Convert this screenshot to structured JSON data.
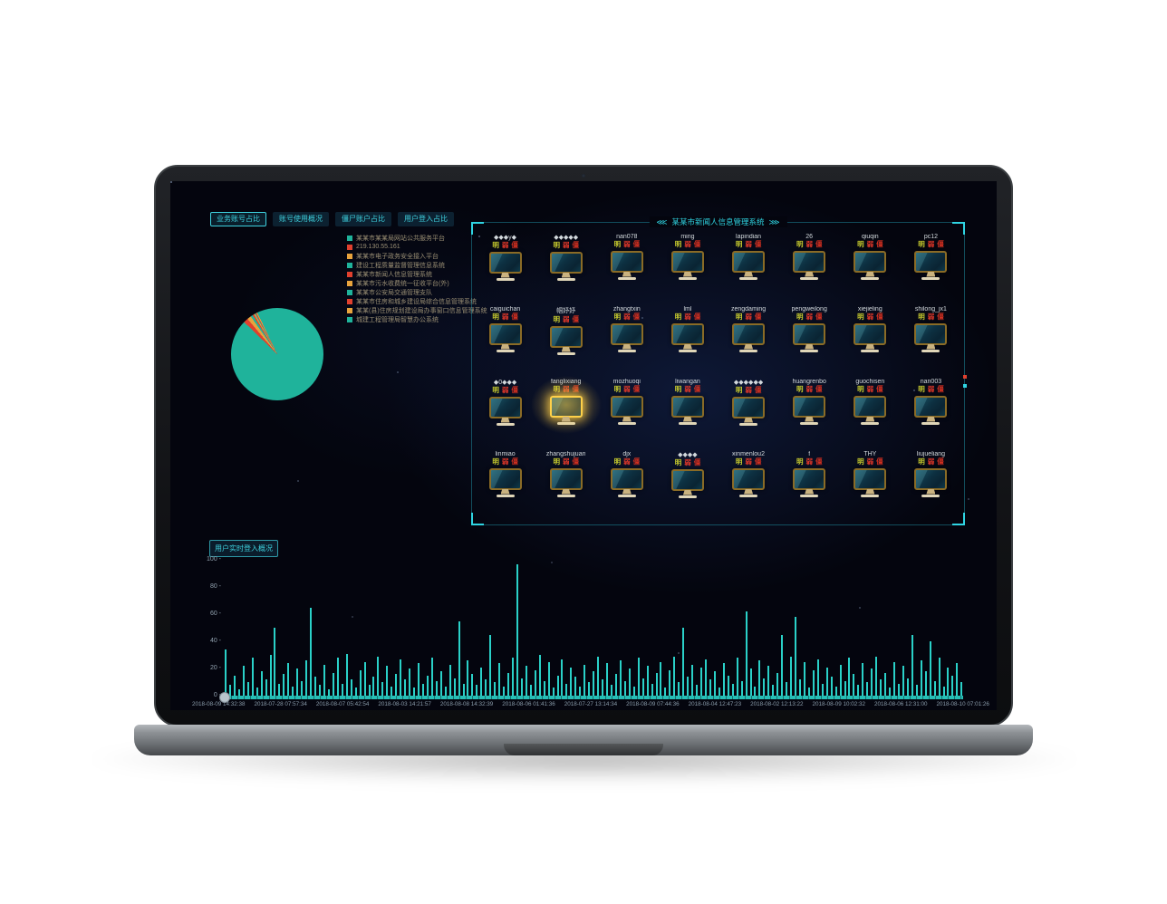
{
  "tabs": [
    {
      "label": "业务账号占比",
      "active": true
    },
    {
      "label": "账号使用概况",
      "active": false
    },
    {
      "label": "僵尸账户占比",
      "active": false
    },
    {
      "label": "用户登入占比",
      "active": false
    }
  ],
  "panel": {
    "arrow_left": "⋘",
    "title": "某某市新闻人信息管理系统",
    "arrow_right": "⋙"
  },
  "grid": {
    "tags": [
      "明",
      "弱",
      "僵"
    ],
    "tag_colors": [
      "#c9cd2e",
      "#e8392a",
      "#cf2f20"
    ],
    "highlight": {
      "row": 2,
      "col": 1
    },
    "rows": [
      [
        "◆◆◆y◆",
        "◆◆◆◆◆",
        "nan078",
        "ming",
        "lapindian",
        "26",
        "qiuqin",
        "pc12"
      ],
      [
        "caiguichan",
        "帼妤妤",
        "zhangtxin",
        "lml",
        "zengdaming",
        "pengweilong",
        "xiejieling",
        "shilong_jx1"
      ],
      [
        "◆0◆◆◆",
        "fanglixiang",
        "mozhuoqi",
        "liwangan",
        "◆◆◆◆◆◆",
        "huangrenbo",
        "guochisen",
        "nan003"
      ],
      [
        "linmiao",
        "zhangshujuan",
        "djx",
        "◆◆◆◆",
        "xinmenlou2",
        "f",
        "THY",
        "liujueliang"
      ]
    ]
  },
  "login_chart_title": "用户实时登入概况",
  "chart_data": [
    {
      "type": "pie",
      "title": "业务账号占比",
      "legend_position": "left",
      "categories": [
        "某某市某某局网站公共服务平台",
        "219.130.55.161",
        "某某市电子政务安全接入平台",
        "建设工程质量监督管理信息系统",
        "某某市新闻人信息管理系统",
        "某某市污水收费统一征收平台(外)",
        "某某市公安局交通管理支队",
        "某某市住房和城乡建设局综合信息管理系统",
        "某某(县)住房规划建设局办事窗口信息管理系统",
        "城建工程管理局智慧办公系统"
      ],
      "values_pct": [
        94.2,
        1.6,
        1.4,
        0.8,
        0.5,
        0.4,
        0.3,
        0.3,
        0.3,
        0.2
      ],
      "colors": [
        "#1fb39b",
        "#e0402e",
        "#e8a33d",
        "#1fb39b",
        "#e0402e",
        "#e8a33d",
        "#1fb39b",
        "#e0402e",
        "#e8a33d",
        "#1fb39b"
      ]
    },
    {
      "type": "bar",
      "title": "用户实时登入概况",
      "ylim": [
        0,
        100
      ],
      "grid": false,
      "y_ticks": [
        100,
        80,
        60,
        40,
        20,
        0
      ],
      "bar_color": "#2ad1c8",
      "x_labels": [
        "2018-08-09 14:32:38",
        "2018-07-28 07:57:34",
        "2018-08-07 05:42:54",
        "2018-08-03 14:21:57",
        "2018-08-08 14:32:39",
        "2018-08-06 01:41:36",
        "2018-07-27 13:14:34",
        "2018-08-09 07:44:36",
        "2018-08-04 12:47:23",
        "2018-08-02 12:13:22",
        "2018-08-09 10:02:32",
        "2018-08-06 12:31:00",
        "2018-08-10 07:01:26"
      ],
      "values": [
        34,
        8,
        15,
        5,
        22,
        10,
        28,
        6,
        18,
        12,
        30,
        50,
        9,
        16,
        24,
        7,
        20,
        11,
        26,
        65,
        14,
        8,
        23,
        5,
        17,
        28,
        9,
        31,
        12,
        6,
        19,
        25,
        8,
        14,
        29,
        10,
        22,
        7,
        16,
        27,
        12,
        20,
        6,
        24,
        9,
        15,
        28,
        11,
        18,
        7,
        23,
        13,
        55,
        9,
        26,
        16,
        8,
        21,
        12,
        45,
        10,
        24,
        7,
        17,
        28,
        97,
        13,
        22,
        8,
        19,
        30,
        11,
        25,
        6,
        15,
        27,
        9,
        21,
        14,
        7,
        23,
        10,
        18,
        29,
        12,
        24,
        8,
        16,
        26,
        11,
        20,
        7,
        28,
        13,
        22,
        9,
        17,
        25,
        6,
        19,
        29,
        10,
        50,
        14,
        23,
        8,
        21,
        27,
        12,
        18,
        6,
        24,
        15,
        9,
        28,
        11,
        62,
        20,
        7,
        26,
        13,
        22,
        8,
        17,
        45,
        10,
        29,
        58,
        12,
        25,
        6,
        19,
        27,
        9,
        21,
        14,
        7,
        23,
        11,
        28,
        16,
        8,
        24,
        10,
        20,
        29,
        12,
        17,
        6,
        25,
        9,
        22,
        13,
        45,
        8,
        26,
        18,
        40,
        11,
        28,
        7,
        21,
        15,
        24,
        10
      ]
    }
  ],
  "colors": {
    "accent": "#2fd4e2",
    "bar": "#2ad1c8",
    "legend_text": "#9a8f74",
    "marker_red": "#e0402e",
    "marker_cyan": "#2fd4e2"
  }
}
